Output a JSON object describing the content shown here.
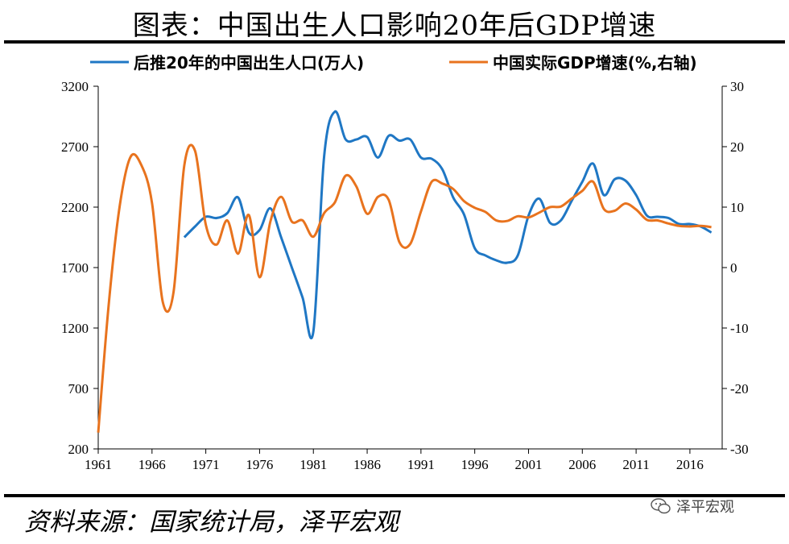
{
  "title": "图表：中国出生人口影响20年后GDP增速",
  "source": "资料来源：国家统计局，泽平宏观",
  "watermark": "泽平宏观",
  "colors": {
    "births": "#1f77c4",
    "gdp": "#e8731e"
  },
  "chart_data": {
    "type": "line",
    "x_ticks": [
      1961,
      1966,
      1971,
      1976,
      1981,
      1986,
      1991,
      1996,
      2001,
      2006,
      2011,
      2016
    ],
    "xlim": [
      1961,
      2019
    ],
    "y_left": {
      "ticks": [
        200,
        700,
        1200,
        1700,
        2200,
        2700,
        3200
      ],
      "lim": [
        200,
        3200
      ]
    },
    "y_right": {
      "ticks": [
        -30,
        -20,
        -10,
        0,
        10,
        20,
        30
      ],
      "lim": [
        -30,
        30
      ]
    },
    "grid": false,
    "legend_position": "top",
    "series": [
      {
        "name": "后推20年的中国出生人口(万人)",
        "axis": "left",
        "color": "#1f77c4",
        "x": [
          1969,
          1970,
          1971,
          1972,
          1973,
          1974,
          1975,
          1976,
          1977,
          1978,
          1979,
          1980,
          1981,
          1982,
          1983,
          1984,
          1985,
          1986,
          1987,
          1988,
          1989,
          1990,
          1991,
          1992,
          1993,
          1994,
          1995,
          1996,
          1997,
          1998,
          1999,
          2000,
          2001,
          2002,
          2003,
          2004,
          2005,
          2006,
          2007,
          2008,
          2009,
          2010,
          2011,
          2012,
          2013,
          2014,
          2015,
          2016,
          2017,
          2018
        ],
        "values": [
          1950,
          2040,
          2120,
          2110,
          2150,
          2280,
          1990,
          2010,
          2190,
          1950,
          1700,
          1450,
          1170,
          2620,
          2990,
          2760,
          2760,
          2780,
          2610,
          2790,
          2750,
          2760,
          2610,
          2600,
          2510,
          2280,
          2140,
          1860,
          1800,
          1760,
          1740,
          1800,
          2130,
          2270,
          2070,
          2090,
          2250,
          2410,
          2560,
          2300,
          2430,
          2420,
          2300,
          2130,
          2120,
          2110,
          2060,
          2060,
          2040,
          1990
        ]
      },
      {
        "name": "中国实际GDP增速(%,右轴)",
        "axis": "right",
        "color": "#e8731e",
        "x": [
          1961,
          1962,
          1963,
          1964,
          1965,
          1966,
          1967,
          1968,
          1969,
          1970,
          1971,
          1972,
          1973,
          1974,
          1975,
          1976,
          1977,
          1978,
          1979,
          1980,
          1981,
          1982,
          1983,
          1984,
          1985,
          1986,
          1987,
          1988,
          1989,
          1990,
          1991,
          1992,
          1993,
          1994,
          1995,
          1996,
          1997,
          1998,
          1999,
          2000,
          2001,
          2002,
          2003,
          2004,
          2005,
          2006,
          2007,
          2008,
          2009,
          2010,
          2011,
          2012,
          2013,
          2014,
          2015,
          2016,
          2017,
          2018
        ],
        "values": [
          -27.3,
          -5.6,
          10.2,
          18.3,
          17.0,
          10.7,
          -5.7,
          -4.1,
          16.9,
          19.3,
          7.1,
          3.8,
          7.8,
          2.3,
          8.7,
          -1.6,
          7.6,
          11.7,
          7.6,
          7.8,
          5.1,
          9.0,
          10.8,
          15.2,
          13.4,
          8.9,
          11.7,
          11.2,
          4.2,
          3.9,
          9.3,
          14.2,
          13.9,
          13.0,
          11.0,
          9.9,
          9.2,
          7.8,
          7.7,
          8.5,
          8.3,
          9.1,
          10.0,
          10.1,
          11.4,
          12.7,
          14.2,
          9.7,
          9.4,
          10.6,
          9.6,
          7.9,
          7.8,
          7.3,
          6.9,
          6.8,
          6.9,
          6.7
        ]
      }
    ]
  }
}
